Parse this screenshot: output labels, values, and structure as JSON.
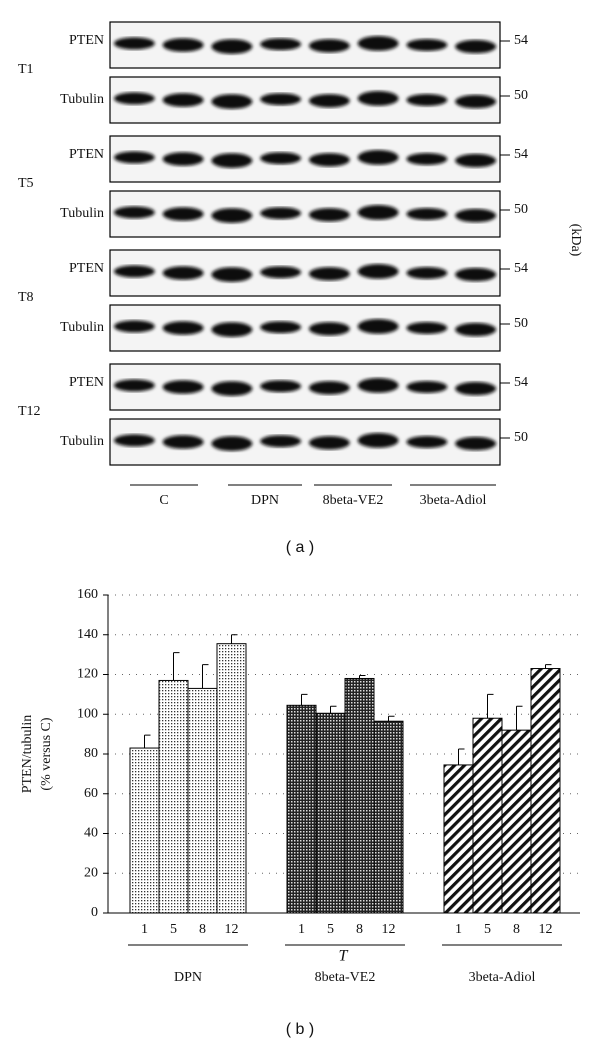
{
  "blot": {
    "panel_label": "( a )",
    "unit": "(kDa)",
    "rows": [
      {
        "time": "T1",
        "proteins": [
          {
            "name": "PTEN",
            "kda": 54
          },
          {
            "name": "Tubulin",
            "kda": 50
          }
        ]
      },
      {
        "time": "T5",
        "proteins": [
          {
            "name": "PTEN",
            "kda": 54
          },
          {
            "name": "Tubulin",
            "kda": 50
          }
        ]
      },
      {
        "time": "T8",
        "proteins": [
          {
            "name": "PTEN",
            "kda": 54
          },
          {
            "name": "Tubulin",
            "kda": 50
          }
        ]
      },
      {
        "time": "T12",
        "proteins": [
          {
            "name": "PTEN",
            "kda": 54
          },
          {
            "name": "Tubulin",
            "kda": 50
          }
        ]
      }
    ],
    "lane_groups": [
      "C",
      "DPN",
      "8beta-VE2",
      "3beta-Adiol"
    ]
  },
  "chart_data": {
    "type": "bar",
    "panel_label": "( b )",
    "ylabel": [
      "PTEN/tubulin",
      "(% versus C)"
    ],
    "xlabel": "T",
    "categories": [
      "1",
      "5",
      "8",
      "12"
    ],
    "groups": [
      {
        "name": "DPN",
        "pattern": "dots",
        "values": [
          83,
          117,
          113,
          135.5
        ],
        "errors": [
          6.5,
          14,
          12,
          4.5
        ]
      },
      {
        "name": "8beta-VE2",
        "pattern": "checker",
        "values": [
          104.5,
          100.5,
          118,
          96.5
        ],
        "errors": [
          5.5,
          3.5,
          1.5,
          2.5
        ]
      },
      {
        "name": "3beta-Adiol",
        "pattern": "diagonal",
        "values": [
          74.5,
          98,
          92,
          123
        ],
        "errors": [
          8,
          12,
          12,
          2
        ]
      }
    ],
    "ylim": [
      0,
      160
    ],
    "yticks": [
      0,
      20,
      40,
      60,
      80,
      100,
      120,
      140,
      160
    ],
    "grid": true
  }
}
